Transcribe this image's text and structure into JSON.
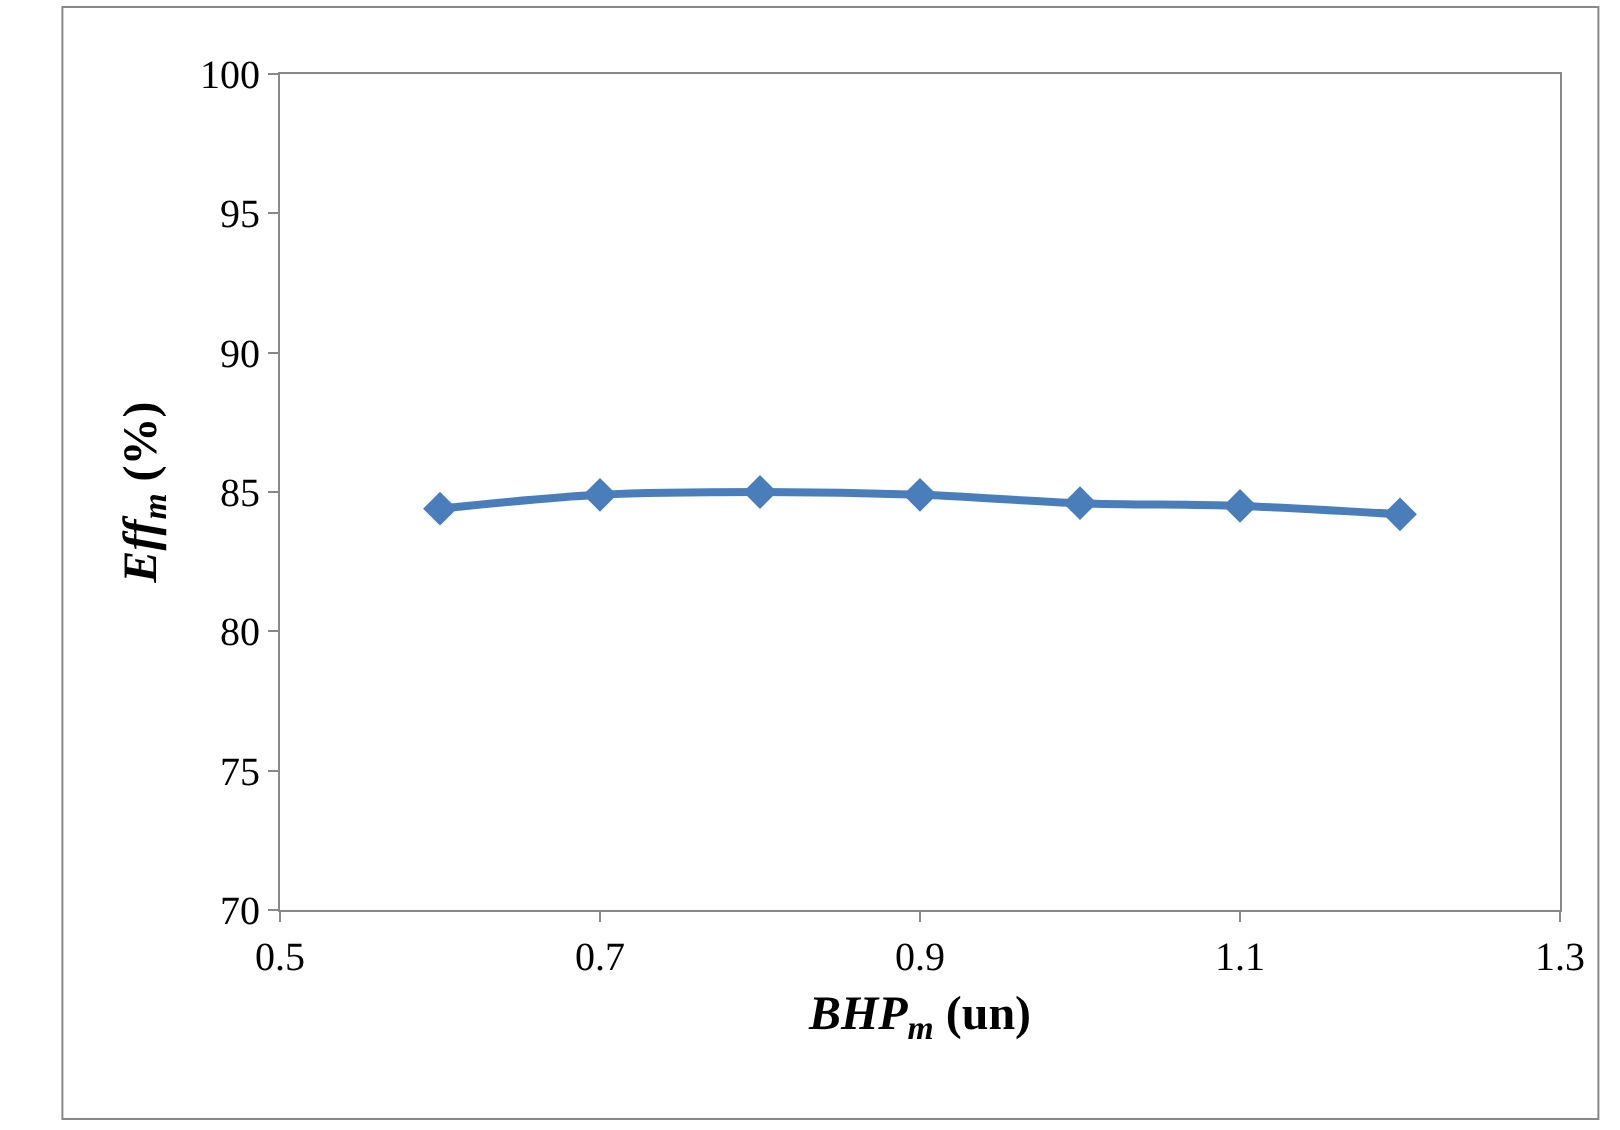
{
  "chart_data": {
    "type": "line",
    "xlabel": "BHP$_{m}$ (un)",
    "ylabel": "Eff$_{m}$ (%)",
    "x": [
      0.6,
      0.7,
      0.8,
      0.9,
      1.0,
      1.1,
      1.2
    ],
    "series": [
      {
        "color": "#4a7ebb",
        "values": [
          84.4,
          84.9,
          85.0,
          84.9,
          84.6,
          84.5,
          84.2
        ]
      }
    ],
    "xlim": [
      0.5,
      1.3
    ],
    "xticks": [
      0.5,
      0.7,
      0.9,
      1.1,
      1.3
    ],
    "ylim": [
      70,
      100
    ],
    "yticks": [
      70,
      75,
      80,
      85,
      90,
      95,
      100
    ],
    "legend": false,
    "marker": "diamond",
    "line_style": "solid"
  }
}
